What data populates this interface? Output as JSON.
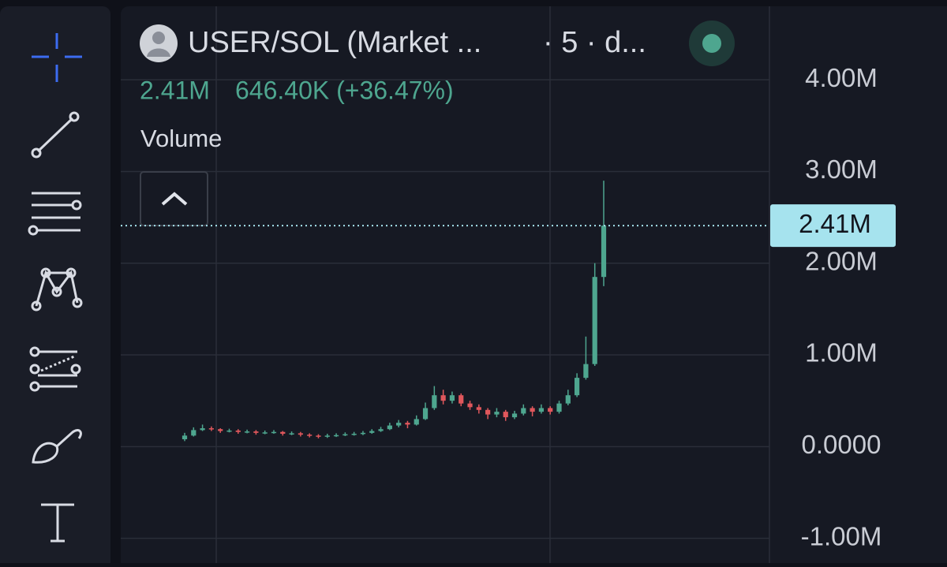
{
  "header": {
    "symbol": "USER/SOL (Market ...",
    "interval": "· 5 · d...",
    "price": "2.41M",
    "change": "646.40K (+36.47%)",
    "indicator": "Volume"
  },
  "chart_data": {
    "type": "candlestick",
    "open": [
      80000,
      120000,
      180000,
      200000,
      190000,
      170000,
      175000,
      160000,
      165000,
      150000,
      155000,
      160000,
      140000,
      145000,
      130000,
      120000,
      110000,
      120000,
      125000,
      135000,
      140000,
      150000,
      170000,
      190000,
      230000,
      260000,
      240000,
      300000,
      420000,
      560000,
      500000,
      560000,
      470000,
      430000,
      400000,
      350000,
      380000,
      320000,
      360000,
      420000,
      380000,
      420000,
      380000,
      470000,
      560000,
      750000,
      900000,
      1850000
    ],
    "high": [
      150000,
      210000,
      240000,
      220000,
      200000,
      195000,
      190000,
      185000,
      180000,
      175000,
      180000,
      170000,
      165000,
      160000,
      145000,
      135000,
      140000,
      145000,
      155000,
      160000,
      170000,
      190000,
      215000,
      260000,
      290000,
      280000,
      340000,
      480000,
      660000,
      620000,
      600000,
      580000,
      500000,
      460000,
      420000,
      420000,
      400000,
      390000,
      460000,
      440000,
      460000,
      440000,
      500000,
      620000,
      800000,
      1200000,
      2000000,
      2900000
    ],
    "low": [
      60000,
      110000,
      170000,
      170000,
      150000,
      155000,
      140000,
      145000,
      130000,
      135000,
      140000,
      120000,
      125000,
      110000,
      100000,
      90000,
      95000,
      105000,
      115000,
      120000,
      125000,
      140000,
      160000,
      180000,
      210000,
      200000,
      230000,
      290000,
      400000,
      460000,
      470000,
      440000,
      400000,
      360000,
      300000,
      320000,
      280000,
      300000,
      340000,
      330000,
      360000,
      350000,
      360000,
      450000,
      540000,
      730000,
      880000,
      1750000
    ],
    "close": [
      120000,
      180000,
      200000,
      190000,
      170000,
      175000,
      160000,
      165000,
      150000,
      155000,
      160000,
      140000,
      145000,
      130000,
      120000,
      110000,
      120000,
      125000,
      135000,
      140000,
      150000,
      170000,
      190000,
      230000,
      260000,
      240000,
      300000,
      420000,
      560000,
      500000,
      560000,
      470000,
      430000,
      400000,
      350000,
      380000,
      320000,
      360000,
      420000,
      380000,
      420000,
      380000,
      470000,
      560000,
      750000,
      900000,
      1850000,
      2410000
    ],
    "up_color": "#4ea68f",
    "down_color": "#e0575c",
    "ylim": [
      -1270000,
      4870000
    ],
    "yticks": [
      {
        "value": -1000000,
        "label": "-1.00M"
      },
      {
        "value": 0,
        "label": "0.0000"
      },
      {
        "value": 1000000,
        "label": "1.00M"
      },
      {
        "value": 2000000,
        "label": "2.00M"
      },
      {
        "value": 3000000,
        "label": "3.00M"
      },
      {
        "value": 4000000,
        "label": "4.00M"
      }
    ],
    "grid": true,
    "last_price": 2410000,
    "last_price_label": "2.41M",
    "last_price_color": "#a6e3ee"
  }
}
